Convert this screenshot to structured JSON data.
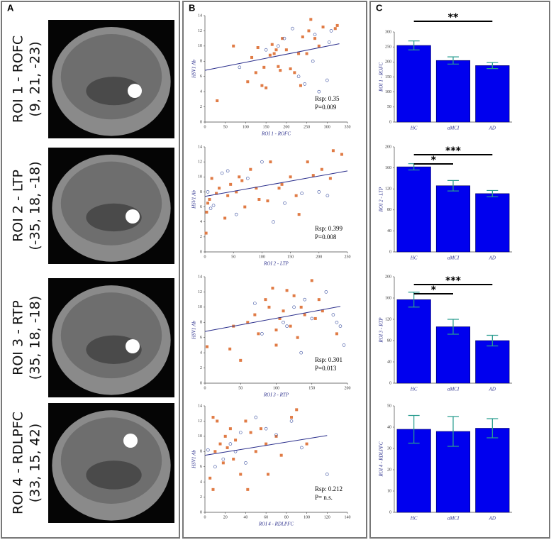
{
  "panel_labels": [
    "A",
    "B",
    "C"
  ],
  "rois": [
    {
      "name": "ROI 1 - ROFC",
      "coords": "(9, 21, -23)"
    },
    {
      "name": "ROI 2 - LTP",
      "coords": "(-35, 18, -18)"
    },
    {
      "name": "ROI 3 - RTP",
      "coords": "(35, 18, -18)"
    },
    {
      "name": "ROI 4 - RDLPFC",
      "coords": "(33, 15, 42)"
    }
  ],
  "chart_data": [
    {
      "type": "scatter",
      "x_label": "ROI 1 - ROFC",
      "y_label": "HSV1 Ab",
      "xlim": [
        0,
        350
      ],
      "xticks": [
        0,
        50,
        100,
        150,
        200,
        250,
        300,
        350
      ],
      "ylim": [
        0,
        14
      ],
      "yticks": [
        0,
        2,
        4,
        6,
        8,
        10,
        12,
        14
      ],
      "series": [
        {
          "color": "#e07b45",
          "marker": "square",
          "x": [
            30,
            70,
            105,
            115,
            125,
            130,
            140,
            145,
            150,
            160,
            165,
            170,
            175,
            180,
            185,
            190,
            200,
            210,
            220,
            230,
            240,
            250,
            255,
            260,
            270,
            280,
            290,
            320,
            325,
            235
          ],
          "values": [
            2.8,
            10,
            5.3,
            8.5,
            6.5,
            9.8,
            4.8,
            7.2,
            4.5,
            8.8,
            10.2,
            9,
            9.5,
            7.3,
            6.8,
            11,
            9.5,
            7,
            6.5,
            9,
            11.2,
            9,
            12,
            13.5,
            11,
            10,
            12.5,
            12.3,
            12.7,
            4.8
          ]
        },
        {
          "color": "#3a4fa0",
          "marker": "circle",
          "x": [
            85,
            150,
            180,
            195,
            215,
            230,
            245,
            265,
            280,
            300,
            305,
            310,
            270
          ],
          "values": [
            7.2,
            9.5,
            10,
            11,
            12.3,
            6,
            5,
            8,
            4,
            5.5,
            10.5,
            12,
            11.5
          ]
        }
      ],
      "fit": {
        "color": "#2b2f8c",
        "x": [
          0,
          330
        ],
        "values": [
          6.8,
          10.3
        ]
      },
      "annotations": [
        "Rsp: 0.35",
        "P=0.009"
      ]
    },
    {
      "type": "scatter",
      "x_label": "ROI 2 - LTP",
      "y_label": "HSV1 Ab",
      "xlim": [
        0,
        250
      ],
      "xticks": [
        0,
        50,
        100,
        150,
        200,
        250
      ],
      "ylim": [
        0,
        14
      ],
      "yticks": [
        0,
        2,
        4,
        6,
        8,
        10,
        12,
        14
      ],
      "series": [
        {
          "color": "#e07b45",
          "marker": "square",
          "x": [
            2,
            3,
            5,
            8,
            12,
            20,
            25,
            35,
            40,
            45,
            55,
            60,
            65,
            70,
            80,
            90,
            95,
            110,
            115,
            130,
            135,
            150,
            160,
            165,
            180,
            190,
            205,
            220,
            225,
            240
          ],
          "values": [
            2.5,
            5.3,
            6.5,
            7,
            9.8,
            7.8,
            8.5,
            4.5,
            7.5,
            9,
            8,
            10,
            9.5,
            6,
            11,
            8.5,
            7,
            6.8,
            12,
            8.5,
            9,
            10,
            7.5,
            5,
            12,
            10.2,
            11,
            9.8,
            13.5,
            13
          ]
        },
        {
          "color": "#3a4fa0",
          "marker": "circle",
          "x": [
            5,
            10,
            15,
            30,
            40,
            55,
            75,
            100,
            120,
            140,
            170,
            200,
            215
          ],
          "values": [
            8,
            5.8,
            6.2,
            10.5,
            10.8,
            5,
            9.8,
            12,
            4,
            6.5,
            7.8,
            8,
            7.5
          ]
        }
      ],
      "fit": {
        "color": "#2b2f8c",
        "x": [
          0,
          250
        ],
        "values": [
          7.4,
          10.8
        ]
      },
      "annotations": [
        "Rsp: 0.399",
        "P=0.008"
      ]
    },
    {
      "type": "scatter",
      "x_label": "ROI 3 - RTP",
      "y_label": "HSV1 Ab",
      "xlim": [
        0,
        200
      ],
      "xticks": [
        0,
        50,
        100,
        150,
        200
      ],
      "ylim": [
        0,
        14
      ],
      "yticks": [
        0,
        2,
        4,
        6,
        8,
        10,
        12,
        14
      ],
      "series": [
        {
          "color": "#e07b45",
          "marker": "square",
          "x": [
            3,
            35,
            40,
            50,
            60,
            70,
            75,
            85,
            90,
            95,
            100,
            105,
            110,
            115,
            120,
            125,
            130,
            135,
            140,
            150,
            155,
            160,
            165,
            185,
            100
          ],
          "values": [
            4.8,
            4.5,
            7.5,
            3,
            8,
            9,
            6.5,
            11,
            10,
            12.5,
            7,
            8.5,
            9.5,
            12.2,
            7.5,
            11.5,
            6,
            10,
            9,
            13.5,
            8.5,
            11,
            9.5,
            6.5,
            5
          ]
        },
        {
          "color": "#3a4fa0",
          "marker": "circle",
          "x": [
            70,
            80,
            110,
            115,
            125,
            135,
            140,
            150,
            170,
            180,
            185,
            190,
            195
          ],
          "values": [
            10.5,
            6.5,
            8,
            7.5,
            10,
            4,
            11,
            8.5,
            12,
            9,
            8,
            7.5,
            5
          ]
        }
      ],
      "fit": {
        "color": "#2b2f8c",
        "x": [
          0,
          190
        ],
        "values": [
          6.8,
          10.1
        ]
      },
      "annotations": [
        "Rsp: 0.301",
        "P=0.013"
      ]
    },
    {
      "type": "scatter",
      "x_label": "ROI 4 - RDLPFC",
      "y_label": "HSV1 Ab",
      "xlim": [
        0,
        140
      ],
      "xticks": [
        0,
        20,
        40,
        60,
        80,
        100,
        120,
        140
      ],
      "ylim": [
        0,
        14
      ],
      "yticks": [
        0,
        2,
        4,
        6,
        8,
        10,
        12,
        14
      ],
      "series": [
        {
          "color": "#e07b45",
          "marker": "square",
          "x": [
            5,
            8,
            10,
            12,
            15,
            18,
            20,
            22,
            25,
            28,
            30,
            35,
            40,
            42,
            45,
            50,
            55,
            60,
            62,
            70,
            75,
            85,
            90,
            100,
            8
          ],
          "values": [
            4.5,
            12.5,
            8,
            12,
            9,
            6.5,
            10,
            8.5,
            11,
            7,
            9.5,
            5,
            12,
            3,
            10.5,
            8,
            11,
            9,
            5,
            10,
            7.5,
            12.5,
            13.5,
            9,
            3
          ]
        },
        {
          "color": "#3a4fa0",
          "marker": "circle",
          "x": [
            3,
            10,
            18,
            25,
            30,
            40,
            50,
            60,
            70,
            85,
            95,
            120,
            35
          ],
          "values": [
            8.2,
            6,
            7,
            9,
            8,
            6.5,
            12.5,
            11,
            10.2,
            12,
            8.5,
            5,
            10.5
          ]
        }
      ],
      "fit": {
        "color": "#2b2f8c",
        "x": [
          0,
          120
        ],
        "values": [
          7.5,
          10.1
        ]
      },
      "annotations": [
        "Rsp: 0.212",
        "P= n.s."
      ]
    },
    {
      "type": "bar",
      "y_label": "ROI 1 - ROFC",
      "categories": [
        "HC",
        "aMCI",
        "AD"
      ],
      "values": [
        255,
        205,
        188
      ],
      "errors": [
        15,
        12,
        10
      ],
      "color": "#0000ee",
      "error_color": "#2a9d8f",
      "ylim": [
        0,
        300
      ],
      "yticks": [
        0,
        50,
        100,
        150,
        200,
        250,
        300
      ],
      "significance": [
        {
          "label": "**",
          "between": [
            "HC",
            "AD"
          ]
        }
      ]
    },
    {
      "type": "bar",
      "y_label": "ROI 2 - LTP",
      "categories": [
        "HC",
        "aMCI",
        "AD"
      ],
      "values": [
        162,
        126,
        111
      ],
      "errors": [
        6,
        10,
        6
      ],
      "color": "#0000ee",
      "error_color": "#2a9d8f",
      "ylim": [
        0,
        200
      ],
      "yticks": [
        0,
        40,
        80,
        120,
        160,
        200
      ],
      "significance": [
        {
          "label": "*",
          "between": [
            "HC",
            "aMCI"
          ]
        },
        {
          "label": "***",
          "between": [
            "HC",
            "AD"
          ]
        }
      ]
    },
    {
      "type": "bar",
      "y_label": "ROI 3 - RTP",
      "categories": [
        "HC",
        "aMCI",
        "AD"
      ],
      "values": [
        157,
        106,
        80
      ],
      "errors": [
        14,
        14,
        10
      ],
      "color": "#0000ee",
      "error_color": "#2a9d8f",
      "ylim": [
        0,
        200
      ],
      "yticks": [
        0,
        40,
        80,
        120,
        160,
        200
      ],
      "significance": [
        {
          "label": "*",
          "between": [
            "HC",
            "aMCI"
          ]
        },
        {
          "label": "***",
          "between": [
            "HC",
            "AD"
          ]
        }
      ]
    },
    {
      "type": "bar",
      "y_label": "ROI 4 - RDLPFC",
      "categories": [
        "HC",
        "aMCI",
        "AD"
      ],
      "values": [
        39,
        38,
        39.5
      ],
      "errors": [
        6.5,
        7,
        4.5
      ],
      "color": "#0000ee",
      "error_color": "#2a9d8f",
      "ylim": [
        0,
        50
      ],
      "yticks": [
        0,
        10,
        20,
        30,
        40,
        50
      ],
      "significance": []
    }
  ]
}
